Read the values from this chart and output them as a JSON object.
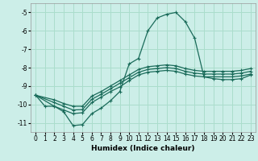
{
  "xlabel": "Humidex (Indice chaleur)",
  "bg_color": "#cceee8",
  "grid_color": "#aaddcc",
  "line_color": "#1a6b5a",
  "xlim": [
    -0.5,
    23.5
  ],
  "ylim": [
    -11.5,
    -4.5
  ],
  "yticks": [
    -11,
    -10,
    -9,
    -8,
    -7,
    -6,
    -5
  ],
  "xticks": [
    0,
    1,
    2,
    3,
    4,
    5,
    6,
    7,
    8,
    9,
    10,
    11,
    12,
    13,
    14,
    15,
    16,
    17,
    18,
    19,
    20,
    21,
    22,
    23
  ],
  "series": [
    {
      "x": [
        0,
        1,
        2,
        3,
        4,
        5,
        6,
        7,
        8,
        9,
        10,
        11,
        12,
        13,
        14,
        15,
        16,
        17,
        18,
        19,
        20,
        21,
        22,
        23
      ],
      "y": [
        -9.5,
        -10.1,
        -10.1,
        -10.4,
        -11.15,
        -11.1,
        -10.5,
        -10.2,
        -9.8,
        -9.3,
        -7.8,
        -7.5,
        -6.0,
        -5.3,
        -5.1,
        -5.0,
        -5.5,
        -6.4,
        -8.5,
        -8.6,
        -8.65,
        -8.65,
        -8.6,
        -8.4
      ]
    },
    {
      "x": [
        0,
        2,
        3,
        4,
        5,
        6,
        7,
        8,
        9,
        10,
        11,
        12,
        13,
        14,
        15,
        16,
        17,
        18,
        19,
        20,
        21,
        22,
        23
      ],
      "y": [
        -9.5,
        -10.1,
        -10.3,
        -10.5,
        -10.45,
        -9.9,
        -9.6,
        -9.3,
        -9.05,
        -8.7,
        -8.4,
        -8.25,
        -8.2,
        -8.15,
        -8.2,
        -8.35,
        -8.45,
        -8.5,
        -8.5,
        -8.5,
        -8.5,
        -8.45,
        -8.35
      ]
    },
    {
      "x": [
        0,
        2,
        3,
        4,
        5,
        6,
        7,
        8,
        9,
        10,
        11,
        12,
        13,
        14,
        15,
        16,
        17,
        18,
        19,
        20,
        21,
        22,
        23
      ],
      "y": [
        -9.5,
        -9.9,
        -10.1,
        -10.3,
        -10.28,
        -9.72,
        -9.45,
        -9.15,
        -8.85,
        -8.55,
        -8.25,
        -8.1,
        -8.05,
        -8.0,
        -8.05,
        -8.2,
        -8.3,
        -8.35,
        -8.35,
        -8.35,
        -8.35,
        -8.3,
        -8.2
      ]
    },
    {
      "x": [
        0,
        2,
        3,
        4,
        5,
        6,
        7,
        8,
        9,
        10,
        11,
        12,
        13,
        14,
        15,
        16,
        17,
        18,
        19,
        20,
        21,
        22,
        23
      ],
      "y": [
        -9.5,
        -9.75,
        -9.95,
        -10.1,
        -10.1,
        -9.55,
        -9.3,
        -9.0,
        -8.7,
        -8.4,
        -8.1,
        -7.95,
        -7.9,
        -7.85,
        -7.9,
        -8.05,
        -8.15,
        -8.2,
        -8.2,
        -8.2,
        -8.2,
        -8.15,
        -8.05
      ]
    }
  ]
}
